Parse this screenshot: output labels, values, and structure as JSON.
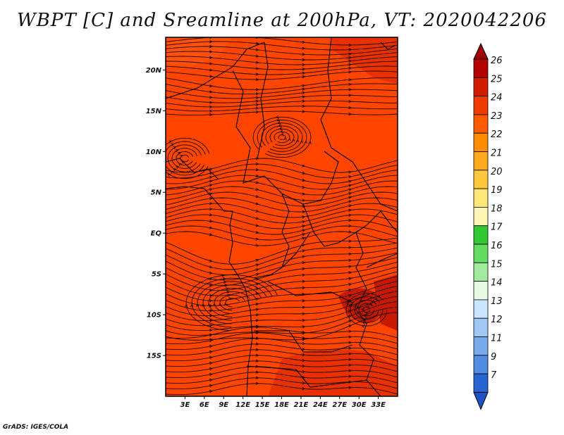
{
  "title": "WBPT [C] and Sreamline at 200hPa, VT: 2020042206",
  "credit": "GrADS: IGES/COLA",
  "map": {
    "lon_range": [
      0,
      36
    ],
    "lat_range": [
      -20,
      24
    ],
    "lon_ticks": [
      {
        "value": 3,
        "label": "3E"
      },
      {
        "value": 6,
        "label": "6E"
      },
      {
        "value": 9,
        "label": "9E"
      },
      {
        "value": 12,
        "label": "12E"
      },
      {
        "value": 15,
        "label": "15E"
      },
      {
        "value": 18,
        "label": "18E"
      },
      {
        "value": 21,
        "label": "21E"
      },
      {
        "value": 24,
        "label": "24E"
      },
      {
        "value": 27,
        "label": "27E"
      },
      {
        "value": 30,
        "label": "30E"
      },
      {
        "value": 33,
        "label": "33E"
      }
    ],
    "lat_ticks": [
      {
        "value": 20,
        "label": "20N"
      },
      {
        "value": 15,
        "label": "15N"
      },
      {
        "value": 10,
        "label": "10N"
      },
      {
        "value": 5,
        "label": "5N"
      },
      {
        "value": 0,
        "label": "EQ"
      },
      {
        "value": -5,
        "label": "5S"
      },
      {
        "value": -10,
        "label": "10S"
      },
      {
        "value": -15,
        "label": "15S"
      }
    ],
    "fill_colors": {
      "base": "#ff4500",
      "darker": "#e83000",
      "darkest": "#c81800",
      "lighter": "#ff5010",
      "line": "#1a0800"
    }
  },
  "colorbar": {
    "labels": [
      "26",
      "25",
      "24",
      "23",
      "22",
      "21",
      "20",
      "19",
      "18",
      "17",
      "16",
      "15",
      "14",
      "13",
      "12",
      "11",
      "9",
      "7"
    ],
    "colors": [
      "#b40000",
      "#d21e00",
      "#ee3c00",
      "#ff5a00",
      "#ff8c00",
      "#ffaa1e",
      "#ffc83c",
      "#ffe678",
      "#fff5b4",
      "#32c832",
      "#64dc64",
      "#a0eba0",
      "#e6fae6",
      "#c8e6ff",
      "#a0c8f5",
      "#78aaeb",
      "#508ce1",
      "#2864d2"
    ],
    "top_cap_color": "#a00000",
    "bottom_cap_color": "#1e50c8"
  }
}
